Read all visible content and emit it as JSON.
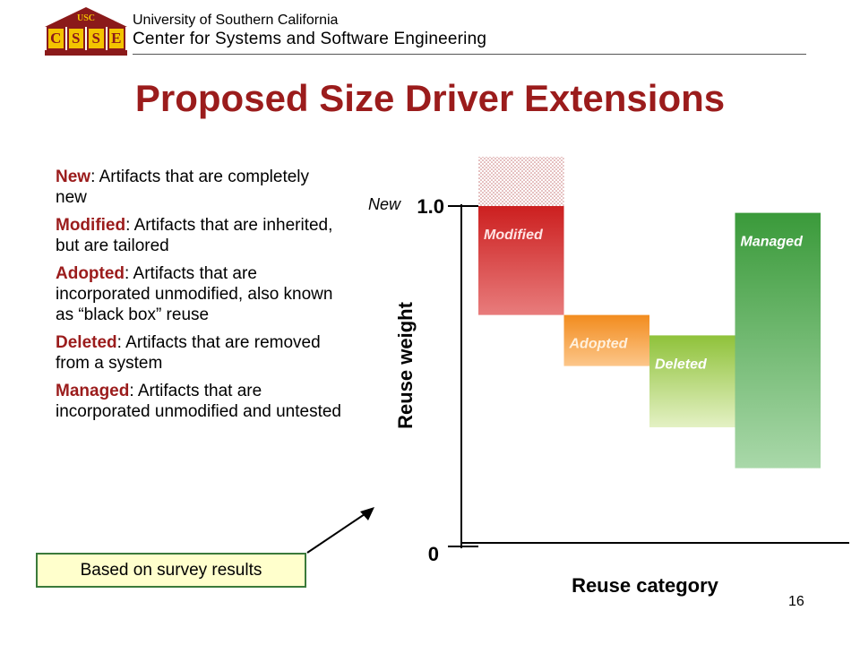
{
  "header": {
    "logo_roof_text": "USC",
    "logo_letters": [
      "C",
      "S",
      "S",
      "E"
    ],
    "university": "University of Southern California",
    "center": "Center for Systems and Software Engineering"
  },
  "title": "Proposed Size Driver Extensions",
  "definitions": [
    {
      "term": "New",
      "text": ": Artifacts that are completely new"
    },
    {
      "term": "Modified",
      "text": ": Artifacts that are inherited, but are tailored"
    },
    {
      "term": "Adopted",
      "text": ": Artifacts that are incorporated unmodified, also known as “black box” reuse"
    },
    {
      "term": "Deleted",
      "text": ": Artifacts that are removed from a system"
    },
    {
      "term": "Managed",
      "text": ": Artifacts that are incorporated unmodified and untested"
    }
  ],
  "callout": "Based on survey results",
  "page_number": "16",
  "chart_data": {
    "type": "bar",
    "xlabel": "Reuse category",
    "ylabel": "Reuse weight",
    "ylim": [
      0,
      1.0
    ],
    "y_ticks": [
      {
        "label": "0",
        "value": 0
      },
      {
        "label": "1.0",
        "value": 1.0
      }
    ],
    "new_label": "New",
    "categories": [
      "Modified",
      "Adopted",
      "Deleted",
      "Managed"
    ],
    "ranges": [
      {
        "name": "Modified",
        "low": 0.68,
        "high": 1.0,
        "color_top": "#cc1f1f",
        "color_bottom": "#e87c7c",
        "label_color": "#ffe4e4"
      },
      {
        "name": "Adopted",
        "low": 0.53,
        "high": 0.68,
        "color_top": "#f28c1e",
        "color_bottom": "#fcc68a",
        "label_color": "#fff0dc"
      },
      {
        "name": "Deleted",
        "low": 0.35,
        "high": 0.62,
        "color_top": "#8fc23a",
        "color_bottom": "#e4f1c4",
        "label_color": "#ffffff"
      },
      {
        "name": "Managed",
        "low": 0.23,
        "high": 0.98,
        "color_top": "#3a9a3a",
        "color_bottom": "#a9d8a9",
        "label_color": "#ffffff"
      }
    ]
  }
}
